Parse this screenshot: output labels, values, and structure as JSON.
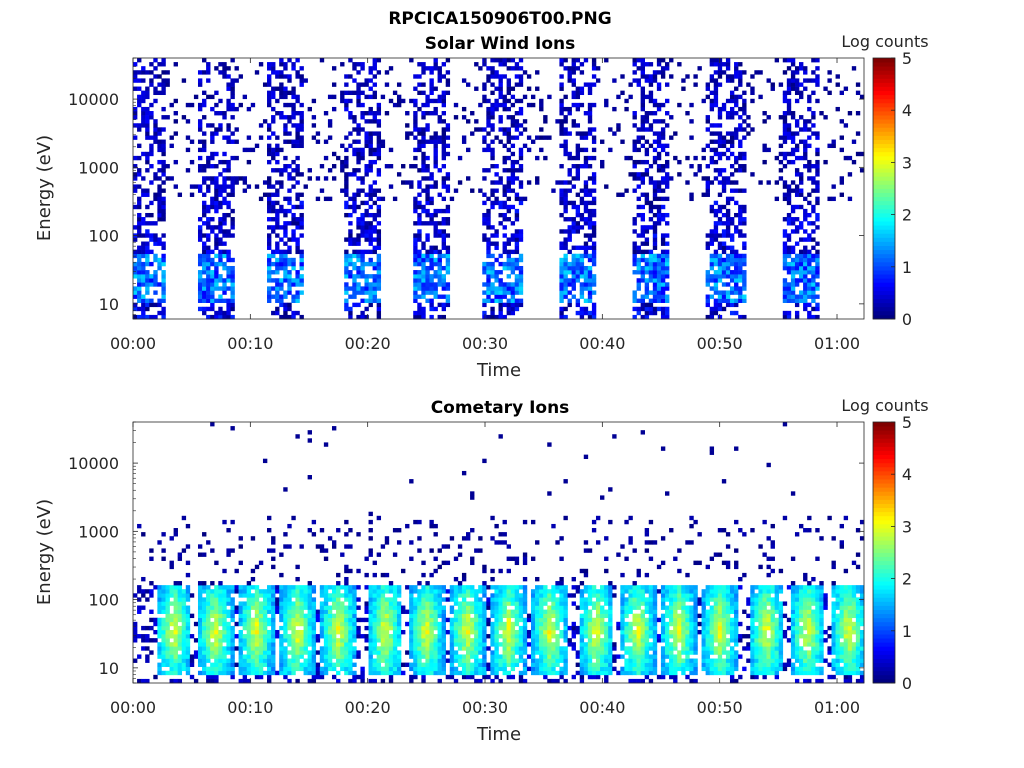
{
  "figure": {
    "title": "RPCICA150906T00.PNG"
  },
  "colorbar": {
    "label": "Log counts",
    "ticks": [
      "0",
      "1",
      "2",
      "3",
      "4",
      "5"
    ],
    "range": [
      0,
      5
    ]
  },
  "chart_data": [
    {
      "type": "heatmap",
      "title": "Solar Wind Ions",
      "xlabel": "Time",
      "ylabel": "Energy (eV)",
      "xticks": [
        "00:00",
        "00:10",
        "00:20",
        "00:30",
        "00:40",
        "00:50",
        "01:00"
      ],
      "yticks": [
        "10",
        "100",
        "1000",
        "10000"
      ],
      "y_scale": "log",
      "ylim": [
        6,
        40000
      ],
      "xlim_minutes": [
        0,
        62.3
      ],
      "sweep_centers_minutes": [
        1,
        7,
        13,
        19.5,
        25.5,
        31.5,
        38,
        44,
        50.5,
        57
      ],
      "colorbar_label": "Log counts",
      "clim": [
        0,
        5
      ],
      "notes": "Periodic vertical bands of low counts (mostly 0-1.5 log counts) across 6 eV - 30 keV, peaks ~1.5-2 near 30-50 eV"
    },
    {
      "type": "heatmap",
      "title": "Cometary Ions",
      "xlabel": "Time",
      "ylabel": "Energy (eV)",
      "xticks": [
        "00:00",
        "00:10",
        "00:20",
        "00:30",
        "00:40",
        "00:50",
        "01:00"
      ],
      "yticks": [
        "10",
        "100",
        "1000",
        "10000"
      ],
      "y_scale": "log",
      "ylim": [
        6,
        40000
      ],
      "xlim_minutes": [
        0,
        62.3
      ],
      "sweep_centers_minutes": [
        3.5,
        7,
        10.5,
        14,
        17.5,
        21.5,
        25,
        28.5,
        32,
        35.5,
        39.5,
        43,
        46.5,
        50,
        54,
        57.5,
        61
      ],
      "colorbar_label": "Log counts",
      "clim": [
        0,
        5
      ],
      "notes": "V-shaped bursts every ~3.5 min between ~10-150 eV reaching 2-3 log counts; sparse counts up to ~10 keV"
    }
  ]
}
